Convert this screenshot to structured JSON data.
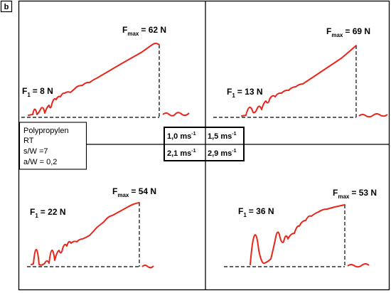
{
  "figure": {
    "panel_label": "b",
    "conditions": [
      "Polypropylen",
      "RT",
      "s/W =7",
      "a/W = 0,2"
    ],
    "speed_values": [
      "1,0",
      "1,5",
      "2,1",
      "2,9"
    ],
    "speed_unit": "ms",
    "speed_exponent": "-1"
  },
  "chart_data": [
    {
      "type": "line",
      "position": "top-left",
      "speed": "1,0 ms-1",
      "f1_label": "F",
      "f1_sub": "1",
      "f1_value": "= 8 N",
      "fmax_label": "F",
      "fmax_sub": "max",
      "fmax_value": "= 62 N",
      "f1": 8,
      "fmax": 62
    },
    {
      "type": "line",
      "position": "top-right",
      "speed": "1,5 ms-1",
      "f1_label": "F",
      "f1_sub": "1",
      "f1_value": "= 13 N",
      "fmax_label": "F",
      "fmax_sub": "max",
      "fmax_value": "= 69 N",
      "f1": 13,
      "fmax": 69
    },
    {
      "type": "line",
      "position": "bottom-left",
      "speed": "2,1 ms-1",
      "f1_label": "F",
      "f1_sub": "1",
      "f1_value": "= 22 N",
      "fmax_label": "F",
      "fmax_sub": "max",
      "fmax_value": "= 54 N",
      "f1": 22,
      "fmax": 54
    },
    {
      "type": "line",
      "position": "bottom-right",
      "speed": "2,9 ms-1",
      "f1_label": "F",
      "f1_sub": "1",
      "f1_value": "= 36 N",
      "fmax_label": "F",
      "fmax_sub": "max",
      "fmax_value": "= 53 N",
      "f1": 36,
      "fmax": 53
    }
  ],
  "colors": {
    "curve": "#e8261c",
    "frame": "#000000",
    "baseline": "#000000"
  }
}
